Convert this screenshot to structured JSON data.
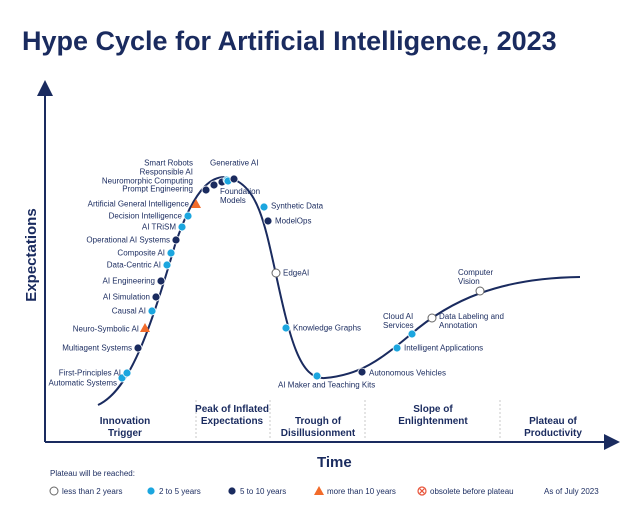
{
  "header": {
    "title": "Hype Cycle for Artificial Intelligence, 2023"
  },
  "axes": {
    "y_label": "Expectations",
    "x_label": "Time"
  },
  "phases": [
    "Innovation Trigger",
    "Peak of Inflated Expectations",
    "Trough of Disillusionment",
    "Slope of Enlightenment",
    "Plateau of Productivity"
  ],
  "items": [
    {
      "label": "Automatic Systems",
      "reached": "2 to 5 years"
    },
    {
      "label": "First-Principles AI",
      "reached": "2 to 5 years"
    },
    {
      "label": "Multiagent Systems",
      "reached": "5 to 10 years"
    },
    {
      "label": "Neuro-Symbolic AI",
      "reached": "more than 10 years"
    },
    {
      "label": "Causal AI",
      "reached": "2 to 5 years"
    },
    {
      "label": "AI Simulation",
      "reached": "5 to 10 years"
    },
    {
      "label": "AI Engineering",
      "reached": "5 to 10 years"
    },
    {
      "label": "Data-Centric AI",
      "reached": "2 to 5 years"
    },
    {
      "label": "Composite AI",
      "reached": "2 to 5 years"
    },
    {
      "label": "Operational AI Systems",
      "reached": "5 to 10 years"
    },
    {
      "label": "AI TRiSM",
      "reached": "2 to 5 years"
    },
    {
      "label": "Decision Intelligence",
      "reached": "2 to 5 years"
    },
    {
      "label": "Artificial General Intelligence",
      "reached": "more than 10 years"
    },
    {
      "label": "Prompt Engineering",
      "reached": "5 to 10 years"
    },
    {
      "label": "Neuromorphic Computing",
      "reached": "5 to 10 years"
    },
    {
      "label": "Responsible AI",
      "reached": "5 to 10 years"
    },
    {
      "label": "Smart Robots",
      "reached": "2 to 5 years"
    },
    {
      "label": "Foundation Models",
      "reached": "2 to 5 years"
    },
    {
      "label": "Generative AI",
      "reached": "5 to 10 years"
    },
    {
      "label": "Synthetic Data",
      "reached": "2 to 5 years"
    },
    {
      "label": "ModelOps",
      "reached": "5 to 10 years"
    },
    {
      "label": "EdgeAI",
      "reached": "less than 2 years"
    },
    {
      "label": "Knowledge Graphs",
      "reached": "2 to 5 years"
    },
    {
      "label": "AI Maker and Teaching Kits",
      "reached": "2 to 5 years"
    },
    {
      "label": "Autonomous Vehicles",
      "reached": "5 to 10 years"
    },
    {
      "label": "Intelligent Applications",
      "reached": "2 to 5 years"
    },
    {
      "label": "Cloud AI Services",
      "reached": "2 to 5 years"
    },
    {
      "label": "Data Labeling and Annotation",
      "reached": "less than 2 years"
    },
    {
      "label": "Computer Vision",
      "reached": "less than 2 years"
    }
  ],
  "legend": {
    "title": "Plateau will be reached:",
    "entries": [
      {
        "label": "less than 2 years",
        "shape": "open-circle",
        "color": "#ffffff"
      },
      {
        "label": "2 to 5 years",
        "shape": "circle",
        "color": "#1ba6df"
      },
      {
        "label": "5 to 10 years",
        "shape": "circle",
        "color": "#1a2b5f"
      },
      {
        "label": "more than 10 years",
        "shape": "triangle",
        "color": "#f26b2a"
      },
      {
        "label": "obsolete before plateau",
        "shape": "cross-circle",
        "color": "#e8543a"
      }
    ]
  },
  "note": "As of July 2023"
}
